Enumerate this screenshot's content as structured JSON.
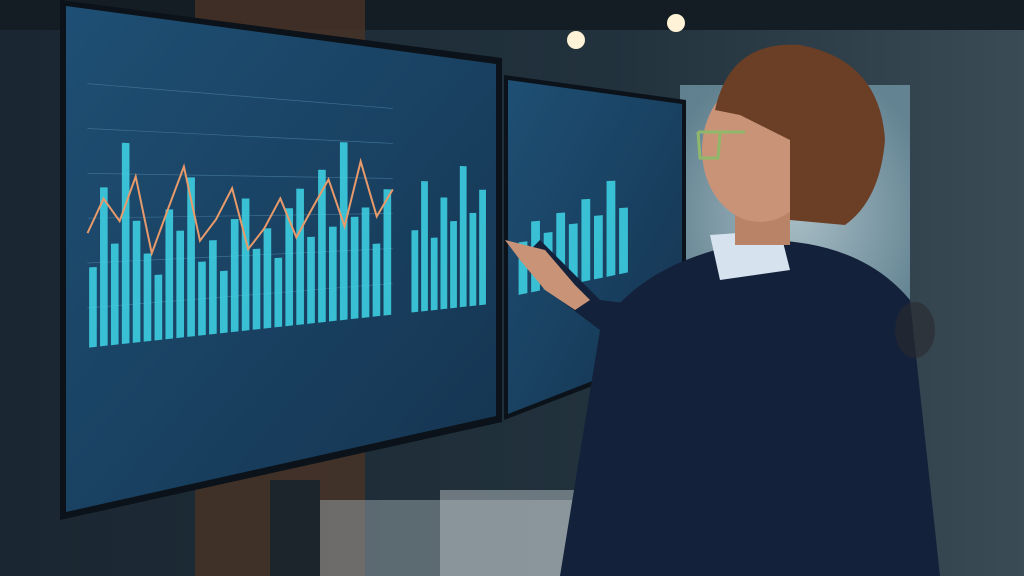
{
  "scene": {
    "description_colors": {
      "background": "#1b2a36",
      "screen_glow": "#1d4a6e",
      "bar_cyan": "#3fd6e8",
      "line_orange": "#e89a6a",
      "suit": "#14213a",
      "skin": "#c99377",
      "hair": "#6b3e26",
      "window_light": "#a9c9d6"
    },
    "left_screen": {
      "bars": [
        0.35,
        0.7,
        0.45,
        0.9,
        0.55,
        0.4,
        0.3,
        0.6,
        0.5,
        0.75,
        0.35,
        0.45,
        0.3,
        0.55,
        0.65,
        0.4,
        0.5,
        0.35,
        0.6,
        0.7,
        0.45,
        0.8,
        0.5,
        0.95,
        0.55,
        0.6,
        0.4,
        0.7
      ],
      "line": [
        0.5,
        0.65,
        0.55,
        0.75,
        0.4,
        0.6,
        0.8,
        0.45,
        0.55,
        0.7,
        0.4,
        0.5,
        0.65,
        0.45,
        0.6,
        0.75,
        0.5,
        0.85,
        0.55,
        0.7
      ],
      "side_bars": [
        0.5,
        0.8,
        0.45,
        0.7,
        0.55,
        0.9,
        0.6,
        0.75
      ]
    },
    "right_screen": {
      "bars": [
        0.4,
        0.55,
        0.45,
        0.6,
        0.5,
        0.7,
        0.55,
        0.85,
        0.6
      ]
    }
  }
}
